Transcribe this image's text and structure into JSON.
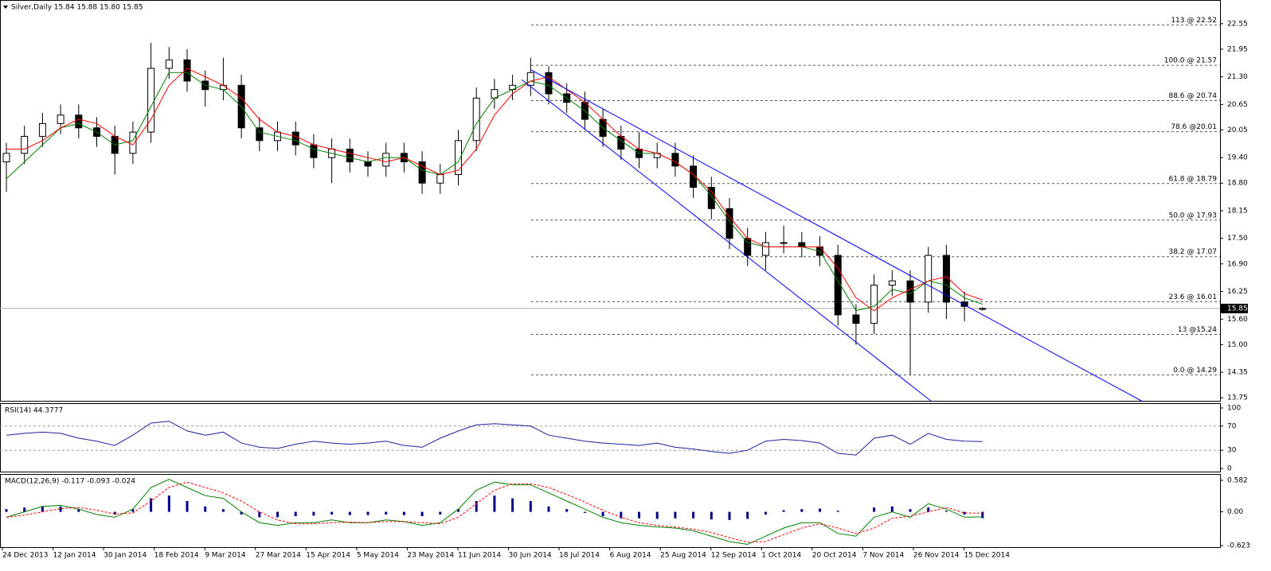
{
  "chart_data": {
    "type": "candlestick",
    "title": "Silver,Daily 15.84 15.88 15.80 15.85",
    "x_labels": [
      "24 Dec 2013",
      "12 Jan 2014",
      "30 Jan 2014",
      "18 Feb 2014",
      "9 Mar 2014",
      "27 Mar 2014",
      "15 Apr 2014",
      "5 May 2014",
      "23 May 2014",
      "11 Jun 2014",
      "30 Jun 2014",
      "18 Jul 2014",
      "6 Aug 2014",
      "25 Aug 2014",
      "12 Sep 2014",
      "1 Oct 2014",
      "20 Oct 2014",
      "7 Nov 2014",
      "26 Nov 2014",
      "15 Dec 2014"
    ],
    "open": [
      19.3,
      19.5,
      19.9,
      20.2,
      20.4,
      20.1,
      19.9,
      19.5,
      20.0,
      21.5,
      21.7,
      21.2,
      21.0,
      21.1,
      20.1,
      19.8,
      20.0,
      19.7,
      19.4,
      19.6,
      19.3,
      19.2,
      19.5,
      19.3,
      18.8,
      19.0,
      19.8,
      20.8,
      21.0,
      21.1,
      21.4,
      20.9,
      20.7,
      20.3,
      19.9,
      19.6,
      19.4,
      19.5,
      19.2,
      18.7,
      18.2,
      17.5,
      17.1,
      17.4,
      17.4,
      17.3,
      17.1,
      15.7,
      15.5,
      16.4,
      16.5,
      16.0,
      17.1,
      16.0,
      15.84
    ],
    "high": [
      19.75,
      20.15,
      20.45,
      20.65,
      20.65,
      20.35,
      20.15,
      20.25,
      22.1,
      22.0,
      21.95,
      21.45,
      21.75,
      21.35,
      20.35,
      20.25,
      20.25,
      19.95,
      19.85,
      19.85,
      19.55,
      19.75,
      19.75,
      19.55,
      19.25,
      20.05,
      21.05,
      21.25,
      21.35,
      21.75,
      21.55,
      21.15,
      20.95,
      20.55,
      20.15,
      20.0,
      19.75,
      19.75,
      19.45,
      18.95,
      18.45,
      17.75,
      17.65,
      17.8,
      17.65,
      17.55,
      17.35,
      15.95,
      16.65,
      16.75,
      16.75,
      17.3,
      17.35,
      16.25,
      15.88
    ],
    "low": [
      18.6,
      19.25,
      19.65,
      19.95,
      19.85,
      19.65,
      19.0,
      19.25,
      19.75,
      21.25,
      20.95,
      20.6,
      20.75,
      19.85,
      19.55,
      19.55,
      19.45,
      19.15,
      18.8,
      19.05,
      18.95,
      18.95,
      19.05,
      18.55,
      18.55,
      18.75,
      19.55,
      20.55,
      20.75,
      20.85,
      20.65,
      20.45,
      20.05,
      19.65,
      19.35,
      19.15,
      19.15,
      18.95,
      18.45,
      17.95,
      17.25,
      16.85,
      16.75,
      17.15,
      17.05,
      16.85,
      15.45,
      15.0,
      15.25,
      16.15,
      14.29,
      15.75,
      15.6,
      15.55,
      15.8
    ],
    "close": [
      19.5,
      19.9,
      20.2,
      20.4,
      20.1,
      19.9,
      19.5,
      20.0,
      21.5,
      21.7,
      21.2,
      21.0,
      21.1,
      20.1,
      19.8,
      20.0,
      19.7,
      19.4,
      19.6,
      19.3,
      19.2,
      19.5,
      19.3,
      18.8,
      19.0,
      19.8,
      20.8,
      21.0,
      21.1,
      21.4,
      20.9,
      20.7,
      20.3,
      19.9,
      19.6,
      19.4,
      19.5,
      19.2,
      18.7,
      18.2,
      17.5,
      17.1,
      17.4,
      17.4,
      17.3,
      17.1,
      15.7,
      15.5,
      16.4,
      16.5,
      16.0,
      17.1,
      16.0,
      15.9,
      15.85
    ],
    "lines": [
      {
        "color": "#008000",
        "values": [
          18.9,
          19.3,
          19.7,
          20.1,
          20.2,
          20.0,
          19.7,
          19.8,
          20.6,
          21.4,
          21.4,
          21.1,
          21.0,
          20.6,
          20.0,
          19.9,
          19.8,
          19.6,
          19.5,
          19.4,
          19.3,
          19.4,
          19.4,
          19.1,
          19.0,
          19.3,
          20.2,
          20.8,
          21.0,
          21.2,
          21.1,
          20.8,
          20.5,
          20.1,
          19.8,
          19.5,
          19.5,
          19.3,
          19.0,
          18.5,
          17.9,
          17.4,
          17.3,
          17.3,
          17.3,
          17.2,
          16.5,
          15.8,
          15.9,
          16.3,
          16.2,
          16.5,
          16.4,
          16.1,
          15.95
        ]
      },
      {
        "color": "#ff0000",
        "values": [
          19.6,
          19.6,
          19.8,
          20.1,
          20.3,
          20.2,
          19.9,
          19.7,
          20.3,
          21.1,
          21.5,
          21.3,
          21.1,
          20.8,
          20.3,
          20.0,
          19.9,
          19.7,
          19.6,
          19.5,
          19.4,
          19.3,
          19.4,
          19.2,
          19.0,
          19.1,
          19.6,
          20.4,
          20.9,
          21.2,
          21.3,
          21.0,
          20.7,
          20.3,
          19.9,
          19.6,
          19.5,
          19.3,
          19.0,
          18.6,
          18.0,
          17.5,
          17.3,
          17.3,
          17.3,
          17.3,
          16.8,
          16.1,
          15.8,
          16.1,
          16.3,
          16.5,
          16.6,
          16.2,
          16.05
        ]
      }
    ],
    "ylim": [
      13.66,
      23.07
    ],
    "yticks": [
      {
        "value": 22.55,
        "label": "22.55"
      },
      {
        "value": 21.95,
        "label": "21.95"
      },
      {
        "value": 21.3,
        "label": "21.30"
      },
      {
        "value": 20.65,
        "label": "20.65"
      },
      {
        "value": 20.05,
        "label": "20.05"
      },
      {
        "value": 19.4,
        "label": "19.40"
      },
      {
        "value": 18.8,
        "label": "18.80"
      },
      {
        "value": 18.15,
        "label": "18.15"
      },
      {
        "value": 17.5,
        "label": "17.50"
      },
      {
        "value": 16.9,
        "label": "16.90"
      },
      {
        "value": 16.25,
        "label": "16.25"
      },
      {
        "value": 15.6,
        "label": "15.60"
      },
      {
        "value": 15.0,
        "label": "15.00"
      },
      {
        "value": 14.35,
        "label": "14.35"
      },
      {
        "value": 13.75,
        "label": "13.75"
      }
    ],
    "last_price": 15.85,
    "fib_levels": [
      {
        "value": 22.52,
        "label": "113 @ 22.52"
      },
      {
        "value": 21.57,
        "label": "100.0 @ 21.57"
      },
      {
        "value": 20.74,
        "label": "88.6 @ 20.74"
      },
      {
        "value": 20.01,
        "label": "78.6 @20.01"
      },
      {
        "value": 18.79,
        "label": "61.8 @ 18.79"
      },
      {
        "value": 17.93,
        "label": "50.0 @ 17.93"
      },
      {
        "value": 17.07,
        "label": "38.2 @ 17.07"
      },
      {
        "value": 16.01,
        "label": "23.6 @ 16.01"
      },
      {
        "value": 15.24,
        "label": "13 @15.24"
      },
      {
        "value": 14.29,
        "label": "0.0 @ 14.29"
      }
    ],
    "rsi": {
      "title": "RSI(14) 44.3777",
      "color": "#20209f",
      "ylim": [
        0,
        100
      ],
      "yticks": [
        100,
        70,
        30,
        0
      ],
      "values": [
        55,
        58,
        60,
        58,
        50,
        45,
        38,
        55,
        75,
        78,
        62,
        55,
        60,
        42,
        35,
        33,
        40,
        45,
        42,
        40,
        42,
        45,
        38,
        35,
        50,
        62,
        72,
        74,
        72,
        70,
        55,
        50,
        45,
        42,
        40,
        38,
        42,
        35,
        32,
        28,
        25,
        30,
        45,
        48,
        46,
        42,
        25,
        22,
        50,
        55,
        40,
        58,
        48,
        45,
        44.3777
      ]
    },
    "macd": {
      "title": "MACD(12,26,9) -0.117 -0.093 -0.024",
      "ylim": [
        -0.623,
        0.582
      ],
      "yticks": [
        0.582,
        {
          "value": 0,
          "label": "0.00"
        },
        -0.623
      ],
      "histogram": {
        "color": "#00008b",
        "values": [
          0.05,
          0.08,
          0.1,
          0.1,
          0.05,
          0.0,
          -0.05,
          0.05,
          0.25,
          0.3,
          0.2,
          0.1,
          0.05,
          -0.05,
          -0.1,
          -0.1,
          -0.08,
          -0.07,
          -0.05,
          -0.06,
          -0.06,
          -0.05,
          -0.06,
          -0.08,
          -0.05,
          0.05,
          0.2,
          0.3,
          0.25,
          0.2,
          0.1,
          0.05,
          -0.02,
          -0.08,
          -0.12,
          -0.12,
          -0.13,
          -0.12,
          -0.12,
          -0.14,
          -0.15,
          -0.13,
          -0.05,
          0.03,
          0.05,
          0.06,
          0.02,
          0.0,
          0.08,
          0.1,
          0.05,
          0.08,
          0.02,
          -0.05,
          -0.117
        ]
      },
      "main": {
        "color": "#008000",
        "values": [
          -0.1,
          0.0,
          0.1,
          0.12,
          0.05,
          -0.05,
          -0.1,
          0.05,
          0.45,
          0.6,
          0.45,
          0.3,
          0.25,
          0.0,
          -0.2,
          -0.25,
          -0.2,
          -0.2,
          -0.15,
          -0.2,
          -0.2,
          -0.15,
          -0.18,
          -0.25,
          -0.2,
          0.05,
          0.4,
          0.55,
          0.5,
          0.5,
          0.35,
          0.2,
          0.05,
          -0.1,
          -0.2,
          -0.25,
          -0.28,
          -0.3,
          -0.35,
          -0.45,
          -0.55,
          -0.6,
          -0.45,
          -0.3,
          -0.2,
          -0.2,
          -0.4,
          -0.45,
          -0.1,
          0.0,
          -0.1,
          0.15,
          0.05,
          -0.1,
          -0.093
        ]
      },
      "signal": {
        "color": "#ff0000",
        "values": [
          -0.1,
          -0.06,
          0.0,
          0.06,
          0.08,
          0.03,
          -0.04,
          -0.02,
          0.2,
          0.45,
          0.55,
          0.45,
          0.35,
          0.2,
          0.0,
          -0.15,
          -0.22,
          -0.22,
          -0.2,
          -0.19,
          -0.2,
          -0.18,
          -0.18,
          -0.2,
          -0.22,
          -0.1,
          0.15,
          0.4,
          0.52,
          0.52,
          0.45,
          0.32,
          0.18,
          0.03,
          -0.1,
          -0.2,
          -0.25,
          -0.28,
          -0.32,
          -0.38,
          -0.48,
          -0.56,
          -0.55,
          -0.42,
          -0.3,
          -0.22,
          -0.3,
          -0.4,
          -0.3,
          -0.12,
          -0.08,
          0.0,
          0.08,
          -0.02,
          -0.024
        ]
      }
    }
  }
}
